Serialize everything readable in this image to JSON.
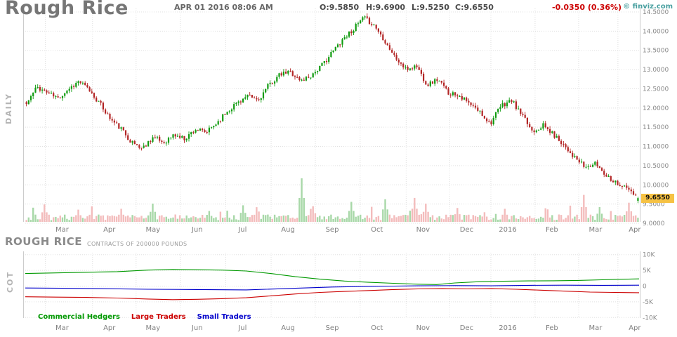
{
  "header": {
    "title": "Rough Rice",
    "datetime": "APR 01 2016 08:06 AM",
    "ohlc": [
      "O:9.5850",
      "H:9.6900",
      "L:9.5250",
      "C:9.6550"
    ],
    "change": "-0.0350 (0.36%)",
    "watermark": "© finviz.com"
  },
  "colors": {
    "candle_up": "#0f9b0f",
    "candle_down": "#b22525",
    "vol_up": "#a8d8a8",
    "vol_down": "#f3bcbc",
    "grid": "#e0e0e0",
    "axis_text": "#888888",
    "badge_bg": "#f6c244",
    "change_red": "#cc0000",
    "watermark_teal": "#49a0a0"
  },
  "x_axis": {
    "labels": [
      {
        "label": "Mar",
        "f": 0.06
      },
      {
        "label": "Apr",
        "f": 0.137
      },
      {
        "label": "May",
        "f": 0.208
      },
      {
        "label": "Jun",
        "f": 0.28
      },
      {
        "label": "Jul",
        "f": 0.354
      },
      {
        "label": "Aug",
        "f": 0.428
      },
      {
        "label": "Sep",
        "f": 0.5
      },
      {
        "label": "Oct",
        "f": 0.573
      },
      {
        "label": "Nov",
        "f": 0.648
      },
      {
        "label": "Dec",
        "f": 0.719
      },
      {
        "label": "2016",
        "f": 0.786
      },
      {
        "label": "Feb",
        "f": 0.858
      },
      {
        "label": "Mar",
        "f": 0.929
      },
      {
        "label": "Apr",
        "f": 0.993
      }
    ]
  },
  "chart_data": [
    {
      "type": "candlestick",
      "title": "Rough Rice",
      "timeframe": "DAILY",
      "ylim": [
        9.0,
        14.5
      ],
      "y_ticks": [
        "14.5000",
        "14.0000",
        "13.5000",
        "13.0000",
        "12.5000",
        "12.0000",
        "11.5000",
        "11.0000",
        "10.5000",
        "10.0000",
        "9.5000",
        "9.0000"
      ],
      "last_label": "9.6550",
      "last": {
        "open": 9.585,
        "high": 9.69,
        "low": 9.525,
        "close": 9.655
      },
      "weekly_closes": [
        12.1,
        12.55,
        12.4,
        12.25,
        12.5,
        12.7,
        12.45,
        12.1,
        11.7,
        11.45,
        11.1,
        10.95,
        11.25,
        11.1,
        11.3,
        11.2,
        11.45,
        11.35,
        11.6,
        11.9,
        12.15,
        12.3,
        12.2,
        12.6,
        12.85,
        12.95,
        12.7,
        12.85,
        13.1,
        13.45,
        13.8,
        14.05,
        14.35,
        14.15,
        13.75,
        13.3,
        13.0,
        13.1,
        12.6,
        12.75,
        12.4,
        12.35,
        12.1,
        11.9,
        11.6,
        12.05,
        12.2,
        11.8,
        11.4,
        11.55,
        11.3,
        11.05,
        10.7,
        10.45,
        10.55,
        10.25,
        10.05,
        9.9,
        9.655
      ],
      "volume_spikes": [
        {
          "f": 0.028,
          "v": 0.4,
          "dir": "down"
        },
        {
          "f": 0.085,
          "v": 0.28,
          "dir": "down"
        },
        {
          "f": 0.155,
          "v": 0.3,
          "dir": "down"
        },
        {
          "f": 0.205,
          "v": 0.42,
          "dir": "up"
        },
        {
          "f": 0.3,
          "v": 0.25,
          "dir": "up"
        },
        {
          "f": 0.355,
          "v": 0.38,
          "dir": "up"
        },
        {
          "f": 0.452,
          "v": 1.0,
          "dir": "up"
        },
        {
          "f": 0.468,
          "v": 0.36,
          "dir": "down"
        },
        {
          "f": 0.53,
          "v": 0.46,
          "dir": "up"
        },
        {
          "f": 0.585,
          "v": 0.52,
          "dir": "up"
        },
        {
          "f": 0.636,
          "v": 0.55,
          "dir": "down"
        },
        {
          "f": 0.652,
          "v": 0.42,
          "dir": "down"
        },
        {
          "f": 0.705,
          "v": 0.32,
          "dir": "down"
        },
        {
          "f": 0.782,
          "v": 0.3,
          "dir": "down"
        },
        {
          "f": 0.912,
          "v": 0.62,
          "dir": "down"
        },
        {
          "f": 0.938,
          "v": 0.34,
          "dir": "up"
        },
        {
          "f": 0.986,
          "v": 0.44,
          "dir": "down"
        }
      ]
    },
    {
      "type": "line",
      "panel_label": "COT",
      "title": "ROUGH RICE",
      "subtitle": "CONTRACTS OF 200000 POUNDS",
      "ylim": [
        -10500,
        11000
      ],
      "y_ticks": [
        "10K",
        "5K",
        "0",
        "-5K",
        "-10K"
      ],
      "y_values": [
        10000,
        5000,
        0,
        -5000,
        -10000
      ],
      "series": [
        {
          "name": "Commercial Hedgers",
          "color": "#009900",
          "points": [
            [
              0,
              4000
            ],
            [
              0.05,
              4200
            ],
            [
              0.1,
              4400
            ],
            [
              0.15,
              4600
            ],
            [
              0.2,
              5100
            ],
            [
              0.24,
              5300
            ],
            [
              0.28,
              5200
            ],
            [
              0.32,
              5100
            ],
            [
              0.36,
              4800
            ],
            [
              0.4,
              4000
            ],
            [
              0.44,
              3000
            ],
            [
              0.48,
              2200
            ],
            [
              0.52,
              1600
            ],
            [
              0.56,
              1200
            ],
            [
              0.6,
              900
            ],
            [
              0.64,
              600
            ],
            [
              0.67,
              500
            ],
            [
              0.7,
              1000
            ],
            [
              0.74,
              1400
            ],
            [
              0.78,
              1550
            ],
            [
              0.82,
              1650
            ],
            [
              0.86,
              1700
            ],
            [
              0.9,
              1800
            ],
            [
              0.94,
              2000
            ],
            [
              1,
              2300
            ]
          ]
        },
        {
          "name": "Large Traders",
          "color": "#cc0000",
          "points": [
            [
              0,
              -3400
            ],
            [
              0.05,
              -3500
            ],
            [
              0.1,
              -3600
            ],
            [
              0.15,
              -3800
            ],
            [
              0.2,
              -4100
            ],
            [
              0.24,
              -4300
            ],
            [
              0.28,
              -4200
            ],
            [
              0.32,
              -4000
            ],
            [
              0.36,
              -3700
            ],
            [
              0.4,
              -3100
            ],
            [
              0.44,
              -2500
            ],
            [
              0.48,
              -2000
            ],
            [
              0.52,
              -1700
            ],
            [
              0.56,
              -1400
            ],
            [
              0.6,
              -1100
            ],
            [
              0.64,
              -900
            ],
            [
              0.68,
              -800
            ],
            [
              0.72,
              -900
            ],
            [
              0.76,
              -800
            ],
            [
              0.8,
              -1000
            ],
            [
              0.84,
              -1300
            ],
            [
              0.88,
              -1600
            ],
            [
              0.92,
              -1900
            ],
            [
              0.96,
              -2000
            ],
            [
              1,
              -2100
            ]
          ]
        },
        {
          "name": "Small Traders",
          "color": "#0000cc",
          "points": [
            [
              0,
              -600
            ],
            [
              0.06,
              -700
            ],
            [
              0.12,
              -800
            ],
            [
              0.2,
              -1000
            ],
            [
              0.28,
              -1100
            ],
            [
              0.36,
              -1200
            ],
            [
              0.44,
              -700
            ],
            [
              0.5,
              -300
            ],
            [
              0.56,
              -100
            ],
            [
              0.6,
              0
            ],
            [
              0.64,
              100
            ],
            [
              0.7,
              150
            ],
            [
              0.76,
              100
            ],
            [
              0.82,
              250
            ],
            [
              0.88,
              300
            ],
            [
              0.94,
              250
            ],
            [
              1,
              300
            ]
          ]
        }
      ]
    }
  ]
}
